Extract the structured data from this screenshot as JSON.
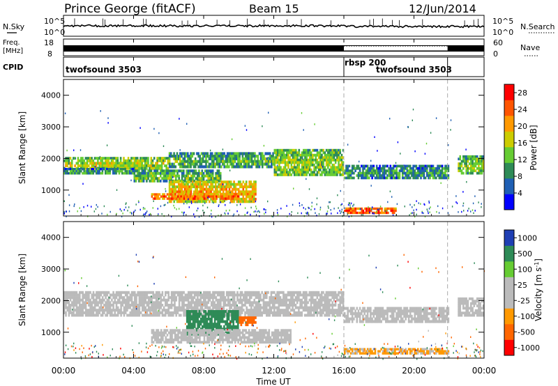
{
  "header": {
    "station": "Prince George (fitACF)",
    "beam": "Beam 15",
    "date": "12/Jun/2014"
  },
  "strip_labels": {
    "nsky": "N.Sky",
    "nsky_ticks": [
      "10^5",
      "10^0"
    ],
    "nsearch": "N.Search",
    "freq_top": "Freq.",
    "freq_unit": "[MHz]",
    "freq_ticks": [
      "18",
      "8"
    ],
    "nave_ticks": [
      "60",
      "0"
    ],
    "nave": "Nave",
    "cpid": "CPID"
  },
  "cpid_segments": [
    {
      "label": "twofsound 3503",
      "start": "00:00",
      "end": "16:00"
    },
    {
      "label": "rbsp 200",
      "start": "16:00",
      "end": "21:55"
    },
    {
      "label": "twofsound 3503",
      "start": "16:00",
      "end": "21:55"
    }
  ],
  "colors": {
    "power_scale": [
      "#0000ff",
      "#1f5fb4",
      "#2e8b57",
      "#66cc33",
      "#cccc00",
      "#ff9900",
      "#ff5500",
      "#ff0000"
    ],
    "velocity_scale": [
      "#ff0000",
      "#ff6600",
      "#ff9900",
      "#bbbbbb",
      "#bbbbbb",
      "#66cc33",
      "#2e8b57",
      "#1f3fb4"
    ],
    "gate_dash": "#aaaaaa"
  },
  "chart_data": [
    {
      "type": "heatmap",
      "name": "power",
      "ylabel": "Slant Range [km]",
      "xlabel": "",
      "x_ticks": [
        "00:00",
        "04:00",
        "08:00",
        "12:00",
        "16:00",
        "20:00",
        "00:00"
      ],
      "y_ticks": [
        1000,
        2000,
        3000,
        4000
      ],
      "ylim": [
        180,
        4500
      ],
      "xlim_hours": [
        0,
        24
      ],
      "colorbar_label": "Power [dB]",
      "colorbar_ticks": [
        4,
        8,
        12,
        16,
        20,
        24,
        28
      ],
      "colorbar_range": [
        0,
        30
      ],
      "bands": [
        {
          "start_h": 0,
          "end_h": 6,
          "y0": 1650,
          "y1": 2050,
          "level": 17
        },
        {
          "start_h": 0,
          "end_h": 4,
          "y0": 1500,
          "y1": 1700,
          "level": 12
        },
        {
          "start_h": 4,
          "end_h": 9,
          "y0": 1250,
          "y1": 1650,
          "level": 14
        },
        {
          "start_h": 6,
          "end_h": 12,
          "y0": 1700,
          "y1": 2200,
          "level": 13
        },
        {
          "start_h": 6,
          "end_h": 11,
          "y0": 600,
          "y1": 1300,
          "level": 22
        },
        {
          "start_h": 5,
          "end_h": 10,
          "y0": 700,
          "y1": 900,
          "level": 26
        },
        {
          "start_h": 12,
          "end_h": 16,
          "y0": 1450,
          "y1": 2300,
          "level": 16
        },
        {
          "start_h": 16,
          "end_h": 22,
          "y0": 1350,
          "y1": 1800,
          "level": 11
        },
        {
          "start_h": 16,
          "end_h": 19,
          "y0": 250,
          "y1": 450,
          "level": 28
        },
        {
          "start_h": 22.5,
          "end_h": 24,
          "y0": 1500,
          "y1": 2100,
          "level": 15
        }
      ]
    },
    {
      "type": "heatmap",
      "name": "velocity",
      "ylabel": "Slant Range [km]",
      "xlabel": "Time UT",
      "x_ticks": [
        "00:00",
        "04:00",
        "08:00",
        "12:00",
        "16:00",
        "20:00",
        "00:00"
      ],
      "y_ticks": [
        1000,
        2000,
        3000,
        4000
      ],
      "ylim": [
        180,
        4500
      ],
      "xlim_hours": [
        0,
        24
      ],
      "colorbar_label": "Velocity [m s^-1]",
      "colorbar_ticks": [
        "1000",
        "500",
        "100",
        "25",
        "-25",
        "-100",
        "-500",
        "-1000"
      ],
      "bands": [
        {
          "start_h": 0,
          "end_h": 16,
          "y0": 1500,
          "y1": 2300,
          "level": 0
        },
        {
          "start_h": 16,
          "end_h": 22,
          "y0": 1300,
          "y1": 1800,
          "level": 0
        },
        {
          "start_h": 22.5,
          "end_h": 24,
          "y0": 1500,
          "y1": 2100,
          "level": 0
        },
        {
          "start_h": 7,
          "end_h": 10,
          "y0": 900,
          "y1": 1700,
          "level": 150
        },
        {
          "start_h": 10,
          "end_h": 11,
          "y0": 1200,
          "y1": 1500,
          "level": -200
        },
        {
          "start_h": 5,
          "end_h": 13,
          "y0": 650,
          "y1": 1100,
          "level": 0
        },
        {
          "start_h": 16,
          "end_h": 22,
          "y0": 300,
          "y1": 500,
          "level": -30
        }
      ]
    }
  ]
}
